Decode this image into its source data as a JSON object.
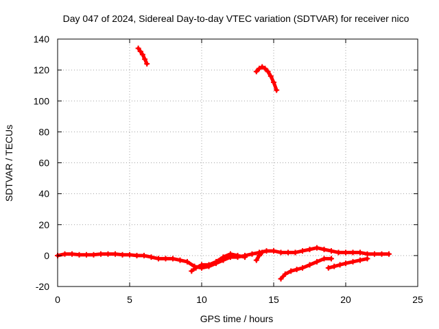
{
  "chart_data": {
    "type": "line",
    "title": "Day 047 of 2024, Sidereal Day-to-day VTEC variation (SDTVAR) for receiver nico",
    "xlabel": "GPS time / hours",
    "ylabel": "SDTVAR / TECUs",
    "xlim": [
      0,
      25
    ],
    "ylim": [
      -20,
      140
    ],
    "xticks": [
      0,
      5,
      10,
      15,
      20,
      25
    ],
    "yticks": [
      -20,
      0,
      20,
      40,
      60,
      80,
      100,
      120,
      140
    ],
    "grid": true,
    "line_color": "#ff0000",
    "series": [
      {
        "name": "main-track",
        "x": [
          0.0,
          0.5,
          1.0,
          1.5,
          2.0,
          2.5,
          3.0,
          3.5,
          4.0,
          4.5,
          5.0,
          5.5,
          6.0,
          6.5,
          7.0,
          7.5,
          8.0,
          8.5,
          9.0,
          9.5,
          10.0,
          10.5,
          11.0,
          11.5,
          12.0,
          12.5,
          13.0,
          13.5,
          14.0,
          14.5,
          15.0,
          15.5,
          16.0,
          16.5,
          17.0,
          17.5,
          18.0,
          18.5,
          19.0,
          19.5,
          20.0,
          20.5,
          21.0,
          21.5,
          22.0,
          22.5,
          23.0
        ],
        "y": [
          0,
          1,
          1,
          0.5,
          0.5,
          0.5,
          1,
          1,
          1,
          0.5,
          0.5,
          0,
          0,
          -1,
          -2,
          -2,
          -2,
          -3,
          -4,
          -7,
          -8,
          -7,
          -5,
          -3,
          -1,
          -1,
          0,
          1,
          2,
          3,
          3,
          2,
          2,
          2,
          3,
          4,
          5,
          4,
          3,
          2,
          2,
          2,
          2,
          1,
          1,
          1,
          1
        ]
      },
      {
        "name": "dip-branch",
        "x": [
          9.3,
          9.6,
          10.0,
          10.5,
          11.0,
          11.5,
          12.0,
          12.5,
          13.0
        ],
        "y": [
          -10,
          -8,
          -6,
          -6,
          -4,
          -1,
          1,
          0,
          -1
        ]
      },
      {
        "name": "arc-near-6h",
        "x": [
          5.6,
          5.75,
          5.9,
          6.05,
          6.2
        ],
        "y": [
          134,
          132,
          130,
          127,
          124
        ]
      },
      {
        "name": "arc-near-14h",
        "x": [
          13.8,
          14.0,
          14.2,
          14.4,
          14.6,
          14.8,
          15.0,
          15.2
        ],
        "y": [
          119,
          121,
          122,
          121,
          119,
          116,
          112,
          107
        ]
      },
      {
        "name": "branch-from-15.5h",
        "x": [
          15.5,
          15.8,
          16.2,
          16.6,
          17.0,
          17.5,
          18.0,
          18.5,
          19.0
        ],
        "y": [
          -15,
          -12,
          -10,
          -9,
          -8,
          -6,
          -4,
          -2,
          -2
        ]
      },
      {
        "name": "branch-from-19h",
        "x": [
          18.8,
          19.2,
          19.6,
          20.0,
          20.5,
          21.0,
          21.5
        ],
        "y": [
          -8,
          -7,
          -6,
          -5,
          -4,
          -3,
          -2
        ]
      },
      {
        "name": "short-spike-13.8h",
        "x": [
          13.8,
          14.0,
          14.2
        ],
        "y": [
          -3,
          0,
          2
        ]
      }
    ]
  }
}
